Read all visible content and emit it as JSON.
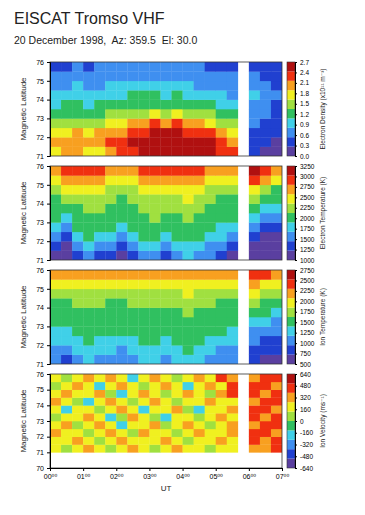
{
  "chart_data": [
    {
      "type": "heatmap",
      "title": "EISCAT Tromso VHF",
      "subtitle": "20 December 1998,  Az: 359.5  El: 30.0",
      "ylabel": "Magnetic Latitude",
      "colorbar_label": "Electron Density (x10¹¹ m⁻³)",
      "xlim": [
        0,
        420
      ],
      "ylim": [
        71,
        76
      ],
      "yticks": [
        71,
        72,
        73,
        74,
        75,
        76
      ],
      "zlim": [
        0,
        2.7
      ],
      "zticks": [
        {
          "value": 0,
          "label": "0.0"
        },
        0.3,
        0.6,
        0.9,
        1.2,
        1.5,
        1.8,
        2.1,
        2.4,
        2.7
      ],
      "x_bins": [
        0,
        20,
        40,
        60,
        80,
        100,
        120,
        140,
        160,
        180,
        200,
        220,
        240,
        260,
        280,
        300,
        320,
        340,
        360,
        380,
        400,
        420
      ],
      "y_bins": [
        71,
        71.5,
        72,
        72.5,
        73,
        73.5,
        74,
        74.5,
        75,
        75.5,
        76
      ],
      "z": [
        [
          1.8,
          1.9,
          2.0,
          1.7,
          1.8,
          2.1,
          2.2,
          2.4,
          2.5,
          2.6,
          2.6,
          2.7,
          2.6,
          2.5,
          2.6,
          2.4,
          2.2,
          null,
          0.3,
          0.2,
          0.2
        ],
        [
          1.9,
          2.0,
          2.1,
          1.9,
          2.0,
          2.2,
          2.3,
          2.5,
          2.6,
          2.6,
          2.7,
          2.6,
          2.6,
          2.5,
          2.5,
          2.3,
          2.0,
          null,
          0.4,
          0.3,
          0.2
        ],
        [
          1.7,
          1.8,
          1.9,
          1.8,
          1.9,
          2.0,
          2.1,
          2.3,
          2.4,
          2.5,
          2.5,
          2.5,
          2.4,
          2.3,
          2.2,
          2.0,
          1.7,
          null,
          0.5,
          0.4,
          0.3
        ],
        [
          1.4,
          1.5,
          1.6,
          1.5,
          1.6,
          1.7,
          1.8,
          1.9,
          2.1,
          2.2,
          2.1,
          2.2,
          2.0,
          1.9,
          1.8,
          1.6,
          1.4,
          null,
          0.6,
          0.5,
          0.4
        ],
        [
          1.2,
          1.3,
          1.3,
          1.2,
          1.3,
          1.4,
          1.4,
          1.5,
          1.6,
          1.7,
          1.6,
          1.7,
          1.5,
          1.5,
          1.4,
          1.3,
          1.1,
          null,
          0.7,
          0.6,
          0.5
        ],
        [
          1.0,
          1.1,
          1.1,
          1.0,
          1.1,
          1.1,
          1.2,
          1.2,
          1.3,
          1.3,
          1.2,
          1.3,
          1.2,
          1.2,
          1.1,
          1.0,
          0.9,
          null,
          0.8,
          0.7,
          0.5
        ],
        [
          0.9,
          0.9,
          1.0,
          0.9,
          0.9,
          1.0,
          1.0,
          1.1,
          1.1,
          1.1,
          1.0,
          1.1,
          1.0,
          1.0,
          0.9,
          0.9,
          0.8,
          null,
          0.9,
          0.8,
          0.6
        ],
        [
          0.8,
          0.8,
          0.9,
          0.8,
          0.8,
          0.9,
          0.9,
          0.9,
          1.0,
          0.9,
          0.9,
          0.9,
          0.9,
          0.8,
          0.8,
          0.8,
          0.7,
          null,
          0.8,
          0.7,
          0.5
        ],
        [
          0.7,
          0.6,
          0.8,
          0.7,
          0.7,
          0.8,
          0.8,
          0.8,
          0.8,
          0.8,
          0.8,
          0.8,
          0.7,
          0.7,
          0.7,
          0.7,
          0.6,
          null,
          0.6,
          0.5,
          0.4
        ],
        [
          0.5,
          0.4,
          0.6,
          0.5,
          0.6,
          0.6,
          0.6,
          0.7,
          0.7,
          0.6,
          0.7,
          0.6,
          0.6,
          0.6,
          0.5,
          0.5,
          0.4,
          null,
          0.4,
          0.3,
          0.3
        ]
      ]
    },
    {
      "type": "heatmap",
      "ylabel": "Magnetic Latitude",
      "colorbar_label": "Electron Temperature (K)",
      "xlim": [
        0,
        420
      ],
      "ylim": [
        71,
        76
      ],
      "yticks": [
        71,
        72,
        73,
        74,
        75,
        76
      ],
      "zlim": [
        1000,
        3250
      ],
      "zticks": [
        1000,
        1250,
        1500,
        1750,
        2000,
        2250,
        2500,
        2750,
        3000,
        3250
      ],
      "x_bins": [
        0,
        20,
        40,
        60,
        80,
        100,
        120,
        140,
        160,
        180,
        200,
        220,
        240,
        260,
        280,
        300,
        320,
        340,
        360,
        380,
        400,
        420
      ],
      "y_bins": [
        71,
        71.5,
        72,
        72.5,
        73,
        73.5,
        74,
        74.5,
        75,
        75.5,
        76
      ],
      "z": [
        [
          1200,
          1100,
          1300,
          1500,
          1400,
          1300,
          1200,
          1300,
          1500,
          1600,
          1400,
          1500,
          1700,
          1600,
          1500,
          1300,
          1200,
          null,
          1100,
          1100,
          1000
        ],
        [
          1300,
          1200,
          1500,
          1700,
          1600,
          1500,
          1400,
          1500,
          1700,
          1800,
          1600,
          1700,
          1800,
          1700,
          1600,
          1500,
          1400,
          null,
          1200,
          1100,
          1100
        ],
        [
          1500,
          1400,
          1700,
          1900,
          1800,
          1700,
          1600,
          1700,
          1900,
          2000,
          1800,
          1900,
          2000,
          1900,
          1800,
          1700,
          1600,
          null,
          1300,
          1200,
          1200
        ],
        [
          1700,
          1600,
          1900,
          2000,
          2000,
          1900,
          1800,
          1900,
          2000,
          2100,
          2000,
          2000,
          2100,
          2000,
          1900,
          1800,
          1700,
          null,
          1500,
          1400,
          1300
        ],
        [
          1900,
          1800,
          2000,
          2100,
          2100,
          2000,
          1900,
          2000,
          2100,
          2200,
          2100,
          2100,
          2200,
          2100,
          2000,
          1900,
          1900,
          null,
          1700,
          1600,
          1500
        ],
        [
          2000,
          2000,
          2100,
          2200,
          2200,
          2100,
          2000,
          2100,
          2200,
          2200,
          2200,
          2200,
          2300,
          2200,
          2100,
          2000,
          2000,
          null,
          1900,
          1800,
          1700
        ],
        [
          2100,
          2200,
          2300,
          2300,
          2300,
          2200,
          2100,
          2200,
          2300,
          2300,
          2300,
          2300,
          2400,
          2300,
          2200,
          2100,
          2100,
          null,
          2200,
          2000,
          1900
        ],
        [
          2300,
          2400,
          2400,
          2500,
          2400,
          2300,
          2300,
          2300,
          2400,
          2400,
          2400,
          2500,
          2500,
          2400,
          2300,
          2300,
          2300,
          null,
          2500,
          2300,
          2100
        ],
        [
          2500,
          2600,
          2600,
          2700,
          2600,
          2500,
          2500,
          2500,
          2600,
          2600,
          2600,
          2700,
          2700,
          2600,
          2500,
          2500,
          2500,
          null,
          2800,
          2600,
          2400
        ],
        [
          2700,
          2800,
          2800,
          2900,
          2800,
          2700,
          2700,
          2700,
          2800,
          2800,
          2800,
          2900,
          2900,
          2800,
          2700,
          2700,
          2700,
          null,
          3100,
          2900,
          2700
        ]
      ]
    },
    {
      "type": "heatmap",
      "ylabel": "Magnetic Latitude",
      "colorbar_label": "Ion Temperature (K)",
      "xlim": [
        0,
        420
      ],
      "ylim": [
        71,
        76
      ],
      "yticks": [
        71,
        72,
        73,
        74,
        75,
        76
      ],
      "zlim": [
        500,
        2750
      ],
      "zticks": [
        500,
        750,
        1000,
        1250,
        1500,
        1750,
        2000,
        2250,
        2500,
        2750
      ],
      "x_bins": [
        0,
        20,
        40,
        60,
        80,
        100,
        120,
        140,
        160,
        180,
        200,
        220,
        240,
        260,
        280,
        300,
        320,
        340,
        360,
        380,
        400,
        420
      ],
      "y_bins": [
        71,
        71.5,
        72,
        72.5,
        73,
        73.5,
        74,
        74.5,
        75,
        75.5,
        76
      ],
      "z": [
        [
          1000,
          900,
          1100,
          1200,
          1100,
          1000,
          1000,
          1100,
          1200,
          1200,
          1100,
          1200,
          1300,
          1200,
          1100,
          1000,
          1000,
          null,
          800,
          700,
          700
        ],
        [
          1100,
          1000,
          1200,
          1300,
          1200,
          1200,
          1100,
          1200,
          1300,
          1300,
          1200,
          1300,
          1400,
          1300,
          1200,
          1100,
          1100,
          null,
          900,
          800,
          800
        ],
        [
          1200,
          1200,
          1300,
          1400,
          1300,
          1300,
          1300,
          1300,
          1400,
          1400,
          1300,
          1400,
          1500,
          1400,
          1300,
          1300,
          1200,
          null,
          1000,
          900,
          900
        ],
        [
          1300,
          1300,
          1400,
          1500,
          1400,
          1400,
          1400,
          1400,
          1500,
          1500,
          1400,
          1500,
          1500,
          1500,
          1400,
          1400,
          1300,
          null,
          1100,
          1000,
          1000
        ],
        [
          1400,
          1400,
          1500,
          1500,
          1500,
          1500,
          1500,
          1500,
          1500,
          1600,
          1500,
          1600,
          1600,
          1500,
          1500,
          1500,
          1400,
          null,
          1300,
          1200,
          1100
        ],
        [
          1500,
          1500,
          1600,
          1600,
          1600,
          1600,
          1500,
          1600,
          1600,
          1600,
          1600,
          1600,
          1700,
          1600,
          1600,
          1500,
          1500,
          null,
          1500,
          1400,
          1300
        ],
        [
          1600,
          1600,
          1700,
          1700,
          1700,
          1600,
          1600,
          1700,
          1700,
          1700,
          1700,
          1700,
          1800,
          1700,
          1700,
          1600,
          1600,
          null,
          1700,
          1600,
          1500
        ],
        [
          1700,
          1800,
          1800,
          1800,
          1800,
          1700,
          1700,
          1800,
          1800,
          1800,
          1800,
          1800,
          1900,
          1800,
          1800,
          1700,
          1700,
          null,
          1900,
          1800,
          1700
        ],
        [
          1900,
          2000,
          1900,
          2000,
          1900,
          1900,
          1900,
          1900,
          2000,
          2000,
          1900,
          2000,
          2000,
          1900,
          1900,
          1900,
          1900,
          null,
          2200,
          2000,
          1900
        ],
        [
          2100,
          2200,
          2100,
          2200,
          2100,
          2100,
          2100,
          2100,
          2200,
          2200,
          2100,
          2200,
          2200,
          2100,
          2100,
          2100,
          2100,
          null,
          2500,
          2300,
          2100
        ]
      ]
    },
    {
      "type": "heatmap",
      "ylabel": "Magnetic Latitude",
      "colorbar_label": "Ion Velocity (ms⁻¹)",
      "xlabel": "UT",
      "xlim": [
        0,
        420
      ],
      "xticks": [
        {
          "value": 0,
          "label": "00⁰⁰"
        },
        {
          "value": 60,
          "label": "01⁰⁰"
        },
        {
          "value": 120,
          "label": "02⁰⁰"
        },
        {
          "value": 180,
          "label": "03⁰⁰"
        },
        {
          "value": 240,
          "label": "04⁰⁰"
        },
        {
          "value": 300,
          "label": "05⁰⁰"
        },
        {
          "value": 360,
          "label": "06⁰⁰"
        },
        {
          "value": 420,
          "label": "07⁰⁰"
        }
      ],
      "ylim": [
        70,
        76
      ],
      "yticks": [
        70,
        71,
        72,
        73,
        74,
        75,
        76
      ],
      "zlim": [
        -640,
        640
      ],
      "zticks": [
        -640,
        -480,
        -320,
        -160,
        0,
        160,
        320,
        480,
        640
      ],
      "x_bins": [
        0,
        20,
        40,
        60,
        80,
        100,
        120,
        140,
        160,
        180,
        200,
        220,
        240,
        260,
        280,
        300,
        320,
        340,
        360,
        380,
        400,
        420
      ],
      "y_bins": [
        71,
        71.5,
        72,
        72.5,
        73,
        73.5,
        74,
        74.5,
        75,
        75.5,
        76
      ],
      "z": [
        [
          160,
          0,
          160,
          320,
          160,
          0,
          160,
          320,
          160,
          0,
          160,
          320,
          160,
          160,
          0,
          160,
          160,
          null,
          320,
          320,
          480
        ],
        [
          160,
          160,
          320,
          160,
          0,
          160,
          320,
          160,
          160,
          160,
          320,
          160,
          0,
          160,
          160,
          320,
          160,
          null,
          480,
          320,
          480
        ],
        [
          320,
          160,
          160,
          0,
          160,
          320,
          160,
          0,
          320,
          160,
          160,
          0,
          160,
          320,
          160,
          160,
          320,
          null,
          480,
          480,
          320
        ],
        [
          160,
          320,
          0,
          160,
          320,
          160,
          -160,
          160,
          160,
          320,
          0,
          160,
          320,
          160,
          0,
          160,
          320,
          null,
          320,
          480,
          480
        ],
        [
          0,
          160,
          160,
          320,
          160,
          -160,
          0,
          320,
          160,
          0,
          -160,
          160,
          160,
          0,
          160,
          320,
          160,
          null,
          480,
          320,
          480
        ],
        [
          160,
          -160,
          160,
          160,
          0,
          160,
          320,
          160,
          -160,
          160,
          160,
          320,
          0,
          -160,
          160,
          160,
          320,
          null,
          480,
          480,
          320
        ],
        [
          320,
          160,
          0,
          -160,
          160,
          320,
          160,
          0,
          160,
          320,
          160,
          0,
          160,
          160,
          320,
          160,
          160,
          null,
          320,
          480,
          480
        ],
        [
          160,
          320,
          160,
          160,
          320,
          0,
          -160,
          160,
          320,
          160,
          0,
          160,
          320,
          160,
          0,
          320,
          480,
          null,
          480,
          320,
          480
        ],
        [
          0,
          160,
          320,
          160,
          -160,
          160,
          320,
          160,
          0,
          160,
          320,
          160,
          -160,
          160,
          320,
          160,
          480,
          null,
          480,
          480,
          320
        ],
        [
          160,
          0,
          160,
          320,
          160,
          320,
          160,
          -160,
          160,
          320,
          160,
          0,
          160,
          320,
          160,
          480,
          320,
          null,
          320,
          480,
          480
        ]
      ]
    }
  ]
}
